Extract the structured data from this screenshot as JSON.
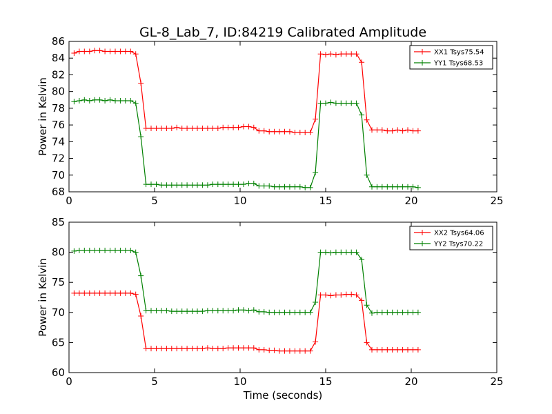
{
  "figure": {
    "title": "GL-8_Lab_7, ID:84219 Calibrated Amplitude",
    "xlabel": "Time (seconds)"
  },
  "chart_data": [
    {
      "type": "line",
      "ylabel": "Power in Kelvin",
      "xlim": [
        0,
        25
      ],
      "ylim": [
        68,
        86
      ],
      "xticks": [
        0,
        5,
        10,
        15,
        20,
        25
      ],
      "yticks": [
        68,
        70,
        72,
        74,
        76,
        78,
        80,
        82,
        84,
        86
      ],
      "grid": false,
      "legend": "top-right",
      "x": [
        0.3,
        0.6,
        0.9,
        1.2,
        1.5,
        1.8,
        2.1,
        2.4,
        2.7,
        3.0,
        3.3,
        3.6,
        3.9,
        4.2,
        4.5,
        4.8,
        5.1,
        5.4,
        5.7,
        6.0,
        6.3,
        6.6,
        6.9,
        7.2,
        7.5,
        7.8,
        8.1,
        8.4,
        8.7,
        9.0,
        9.3,
        9.6,
        9.9,
        10.2,
        10.5,
        10.8,
        11.1,
        11.4,
        11.7,
        12.0,
        12.3,
        12.6,
        12.9,
        13.2,
        13.5,
        13.8,
        14.1,
        14.4,
        14.7,
        15.0,
        15.3,
        15.6,
        15.9,
        16.2,
        16.5,
        16.8,
        17.1,
        17.4,
        17.7,
        18.0,
        18.3,
        18.6,
        18.9,
        19.2,
        19.5,
        19.8,
        20.1,
        20.4
      ],
      "series": [
        {
          "name": "XX1 Tsys75.54",
          "color": "#ff0000",
          "values": [
            84.6,
            84.8,
            84.8,
            84.8,
            84.9,
            84.9,
            84.8,
            84.8,
            84.8,
            84.8,
            84.8,
            84.8,
            84.5,
            81.0,
            75.6,
            75.6,
            75.6,
            75.6,
            75.6,
            75.6,
            75.7,
            75.6,
            75.6,
            75.6,
            75.6,
            75.6,
            75.6,
            75.6,
            75.6,
            75.7,
            75.7,
            75.7,
            75.7,
            75.8,
            75.8,
            75.7,
            75.3,
            75.3,
            75.2,
            75.2,
            75.2,
            75.2,
            75.2,
            75.1,
            75.1,
            75.1,
            75.1,
            76.7,
            84.5,
            84.4,
            84.5,
            84.4,
            84.5,
            84.5,
            84.5,
            84.5,
            83.5,
            76.6,
            75.4,
            75.4,
            75.4,
            75.3,
            75.3,
            75.4,
            75.3,
            75.4,
            75.3,
            75.3
          ]
        },
        {
          "name": "YY1 Tsys68.53",
          "color": "#008000",
          "values": [
            78.8,
            78.9,
            79.0,
            78.9,
            79.0,
            79.0,
            78.9,
            79.0,
            78.9,
            78.9,
            78.9,
            78.9,
            78.6,
            74.6,
            68.9,
            68.9,
            68.9,
            68.8,
            68.8,
            68.8,
            68.8,
            68.8,
            68.8,
            68.8,
            68.8,
            68.8,
            68.8,
            68.9,
            68.9,
            68.9,
            68.9,
            68.9,
            68.9,
            68.9,
            69.0,
            69.0,
            68.7,
            68.7,
            68.7,
            68.6,
            68.6,
            68.6,
            68.6,
            68.6,
            68.6,
            68.5,
            68.5,
            70.3,
            78.6,
            78.6,
            78.7,
            78.6,
            78.6,
            78.6,
            78.6,
            78.6,
            77.2,
            70.0,
            68.6,
            68.6,
            68.6,
            68.6,
            68.6,
            68.6,
            68.6,
            68.6,
            68.6,
            68.5
          ]
        }
      ]
    },
    {
      "type": "line",
      "ylabel": "Power in Kelvin",
      "xlim": [
        0,
        25
      ],
      "ylim": [
        60,
        85
      ],
      "xticks": [
        0,
        5,
        10,
        15,
        20,
        25
      ],
      "yticks": [
        60,
        65,
        70,
        75,
        80,
        85
      ],
      "grid": false,
      "legend": "top-right",
      "x": [
        0.3,
        0.6,
        0.9,
        1.2,
        1.5,
        1.8,
        2.1,
        2.4,
        2.7,
        3.0,
        3.3,
        3.6,
        3.9,
        4.2,
        4.5,
        4.8,
        5.1,
        5.4,
        5.7,
        6.0,
        6.3,
        6.6,
        6.9,
        7.2,
        7.5,
        7.8,
        8.1,
        8.4,
        8.7,
        9.0,
        9.3,
        9.6,
        9.9,
        10.2,
        10.5,
        10.8,
        11.1,
        11.4,
        11.7,
        12.0,
        12.3,
        12.6,
        12.9,
        13.2,
        13.5,
        13.8,
        14.1,
        14.4,
        14.7,
        15.0,
        15.3,
        15.6,
        15.9,
        16.2,
        16.5,
        16.8,
        17.1,
        17.4,
        17.7,
        18.0,
        18.3,
        18.6,
        18.9,
        19.2,
        19.5,
        19.8,
        20.1,
        20.4
      ],
      "series": [
        {
          "name": "XX2 Tsys64.06",
          "color": "#ff0000",
          "values": [
            73.2,
            73.2,
            73.2,
            73.2,
            73.2,
            73.2,
            73.2,
            73.2,
            73.2,
            73.2,
            73.2,
            73.2,
            73.0,
            69.4,
            64.0,
            64.0,
            64.0,
            64.0,
            64.0,
            64.0,
            64.0,
            64.0,
            64.0,
            64.0,
            64.0,
            64.0,
            64.1,
            64.0,
            64.0,
            64.0,
            64.1,
            64.1,
            64.1,
            64.1,
            64.1,
            64.1,
            63.8,
            63.8,
            63.7,
            63.7,
            63.6,
            63.6,
            63.6,
            63.6,
            63.6,
            63.6,
            63.6,
            65.1,
            72.9,
            72.9,
            72.8,
            72.9,
            72.9,
            73.0,
            73.0,
            72.9,
            72.0,
            65.0,
            63.8,
            63.8,
            63.8,
            63.8,
            63.8,
            63.8,
            63.8,
            63.8,
            63.8,
            63.8
          ]
        },
        {
          "name": "YY2 Tsys70.22",
          "color": "#008000",
          "values": [
            80.2,
            80.3,
            80.3,
            80.3,
            80.3,
            80.3,
            80.3,
            80.3,
            80.3,
            80.3,
            80.3,
            80.3,
            80.0,
            76.1,
            70.3,
            70.3,
            70.3,
            70.3,
            70.3,
            70.2,
            70.2,
            70.2,
            70.2,
            70.2,
            70.2,
            70.2,
            70.3,
            70.3,
            70.3,
            70.3,
            70.3,
            70.3,
            70.4,
            70.4,
            70.3,
            70.4,
            70.1,
            70.1,
            70.0,
            70.0,
            70.0,
            70.0,
            70.0,
            70.0,
            70.0,
            70.0,
            70.0,
            71.7,
            80.0,
            80.0,
            79.9,
            80.0,
            80.0,
            80.0,
            80.0,
            80.0,
            78.8,
            71.2,
            69.9,
            70.0,
            70.0,
            70.0,
            70.0,
            70.0,
            70.0,
            70.0,
            70.0,
            70.0
          ]
        }
      ]
    }
  ]
}
